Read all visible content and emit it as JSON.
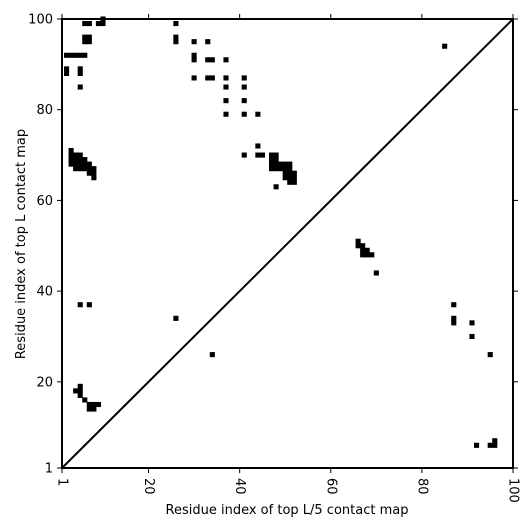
{
  "chart_data": {
    "type": "heatmap",
    "xlabel": "Residue index of top L/5 contact map",
    "ylabel": "Residue index of top L contact map",
    "xlim": [
      1,
      100
    ],
    "ylim": [
      1,
      100
    ],
    "xticks": [
      1,
      20,
      40,
      60,
      80,
      100
    ],
    "yticks": [
      1,
      20,
      40,
      60,
      80,
      100
    ],
    "diagonal": true,
    "cell_color": "#000000",
    "upper_contacts": [
      [
        2,
        92
      ],
      [
        3,
        92
      ],
      [
        4,
        92
      ],
      [
        5,
        92
      ],
      [
        6,
        92
      ],
      [
        2,
        89
      ],
      [
        2,
        88
      ],
      [
        5,
        89
      ],
      [
        5,
        88
      ],
      [
        5,
        85
      ],
      [
        6,
        99
      ],
      [
        7,
        99
      ],
      [
        9,
        99
      ],
      [
        10,
        99
      ],
      [
        10,
        100
      ],
      [
        6,
        96
      ],
      [
        7,
        96
      ],
      [
        6,
        95
      ],
      [
        7,
        95
      ],
      [
        26,
        99
      ],
      [
        26,
        96
      ],
      [
        26,
        95
      ],
      [
        30,
        95
      ],
      [
        30,
        92
      ],
      [
        30,
        91
      ],
      [
        30,
        87
      ],
      [
        33,
        95
      ],
      [
        33,
        91
      ],
      [
        34,
        91
      ],
      [
        33,
        87
      ],
      [
        34,
        87
      ],
      [
        37,
        91
      ],
      [
        37,
        87
      ],
      [
        37,
        85
      ],
      [
        37,
        82
      ],
      [
        37,
        79
      ],
      [
        41,
        87
      ],
      [
        41,
        85
      ],
      [
        41,
        82
      ],
      [
        41,
        79
      ],
      [
        41,
        70
      ],
      [
        44,
        79
      ],
      [
        44,
        72
      ],
      [
        44,
        70
      ],
      [
        45,
        70
      ],
      [
        47,
        70
      ],
      [
        48,
        70
      ],
      [
        47,
        69
      ],
      [
        48,
        69
      ],
      [
        47,
        68
      ],
      [
        48,
        68
      ],
      [
        49,
        68
      ],
      [
        50,
        68
      ],
      [
        51,
        68
      ],
      [
        47,
        67
      ],
      [
        48,
        67
      ],
      [
        49,
        67
      ],
      [
        50,
        67
      ],
      [
        51,
        67
      ],
      [
        50,
        66
      ],
      [
        51,
        66
      ],
      [
        52,
        66
      ],
      [
        50,
        65
      ],
      [
        51,
        65
      ],
      [
        52,
        65
      ],
      [
        51,
        64
      ],
      [
        52,
        64
      ],
      [
        48,
        63
      ],
      [
        3,
        71
      ],
      [
        3,
        70
      ],
      [
        4,
        70
      ],
      [
        5,
        70
      ],
      [
        3,
        69
      ],
      [
        4,
        69
      ],
      [
        5,
        69
      ],
      [
        6,
        69
      ],
      [
        3,
        68
      ],
      [
        4,
        68
      ],
      [
        5,
        68
      ],
      [
        6,
        68
      ],
      [
        7,
        68
      ],
      [
        4,
        67
      ],
      [
        5,
        67
      ],
      [
        6,
        67
      ],
      [
        7,
        67
      ],
      [
        8,
        67
      ],
      [
        7,
        66
      ],
      [
        8,
        66
      ],
      [
        8,
        65
      ],
      [
        66,
        51
      ],
      [
        66,
        50
      ],
      [
        67,
        50
      ],
      [
        67,
        49
      ],
      [
        68,
        49
      ],
      [
        67,
        48
      ],
      [
        68,
        48
      ],
      [
        69,
        48
      ],
      [
        70,
        44
      ],
      [
        85,
        94
      ]
    ],
    "lower_contacts": [
      [
        5,
        37
      ],
      [
        7,
        37
      ],
      [
        26,
        34
      ],
      [
        34,
        26
      ],
      [
        5,
        19
      ],
      [
        5,
        18
      ],
      [
        4,
        18
      ],
      [
        5,
        17
      ],
      [
        6,
        16
      ],
      [
        7,
        15
      ],
      [
        8,
        15
      ],
      [
        9,
        15
      ],
      [
        7,
        14
      ],
      [
        8,
        14
      ],
      [
        87,
        37
      ],
      [
        87,
        34
      ],
      [
        87,
        33
      ],
      [
        91,
        33
      ],
      [
        91,
        30
      ],
      [
        95,
        26
      ],
      [
        92,
        6
      ],
      [
        95,
        6
      ],
      [
        96,
        6
      ],
      [
        96,
        7
      ]
    ]
  }
}
